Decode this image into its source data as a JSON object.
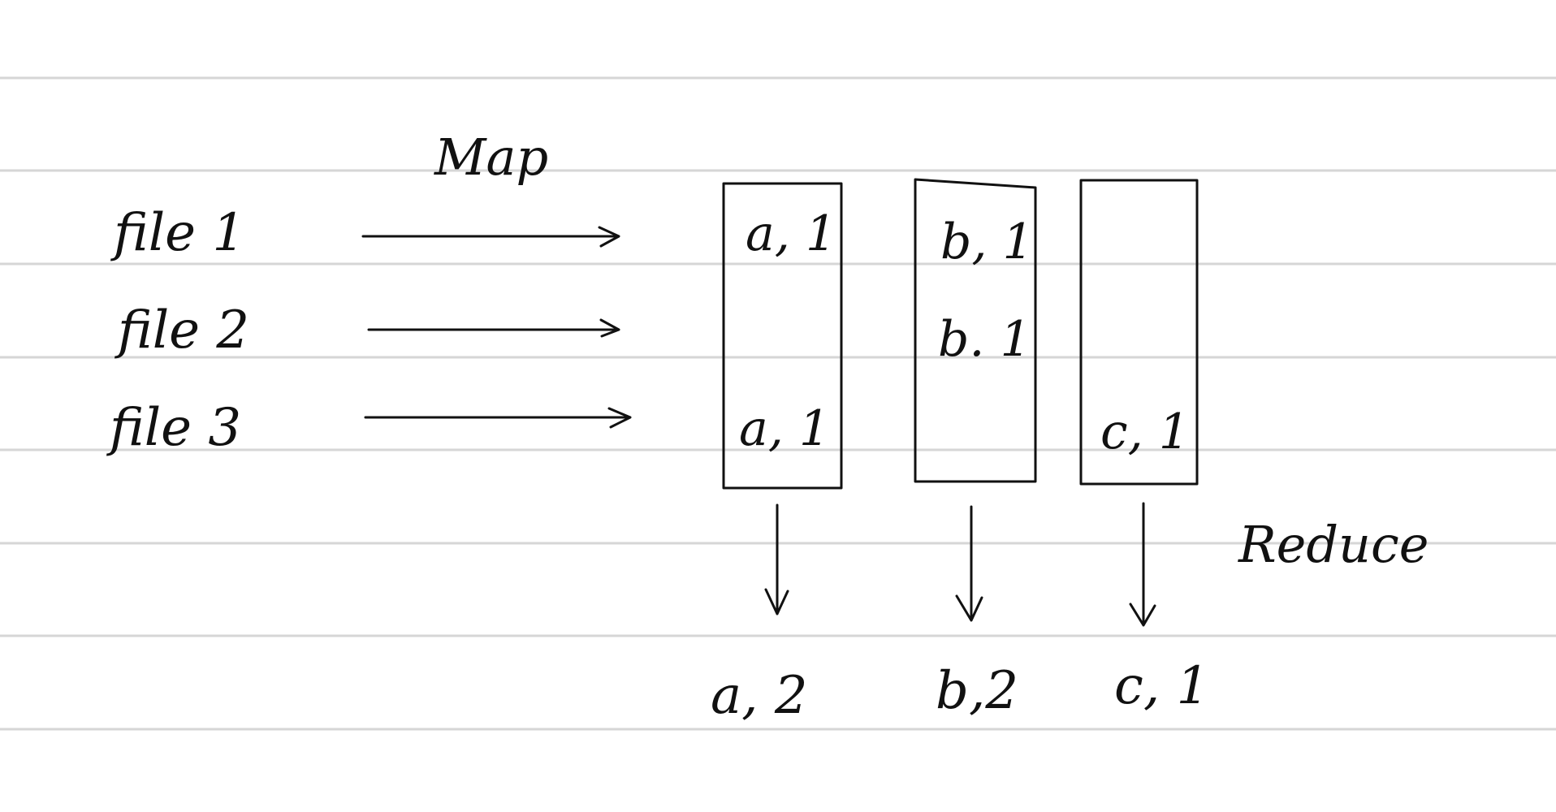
{
  "stages": {
    "map_label": "Map",
    "reduce_label": "Reduce"
  },
  "inputs": [
    {
      "label": "file 1"
    },
    {
      "label": "file 2"
    },
    {
      "label": "file 3"
    }
  ],
  "buckets": [
    {
      "key": "a",
      "items": [
        "a, 1",
        "a, 1"
      ],
      "output": "a, 2"
    },
    {
      "key": "b",
      "items": [
        "b, 1",
        "b. 1"
      ],
      "output": "b,2"
    },
    {
      "key": "c",
      "items": [
        "c, 1"
      ],
      "output": "c, 1"
    }
  ],
  "colors": {
    "ink": "#111111",
    "ruled_line": "#d6d6d6",
    "paper": "#ffffff"
  }
}
